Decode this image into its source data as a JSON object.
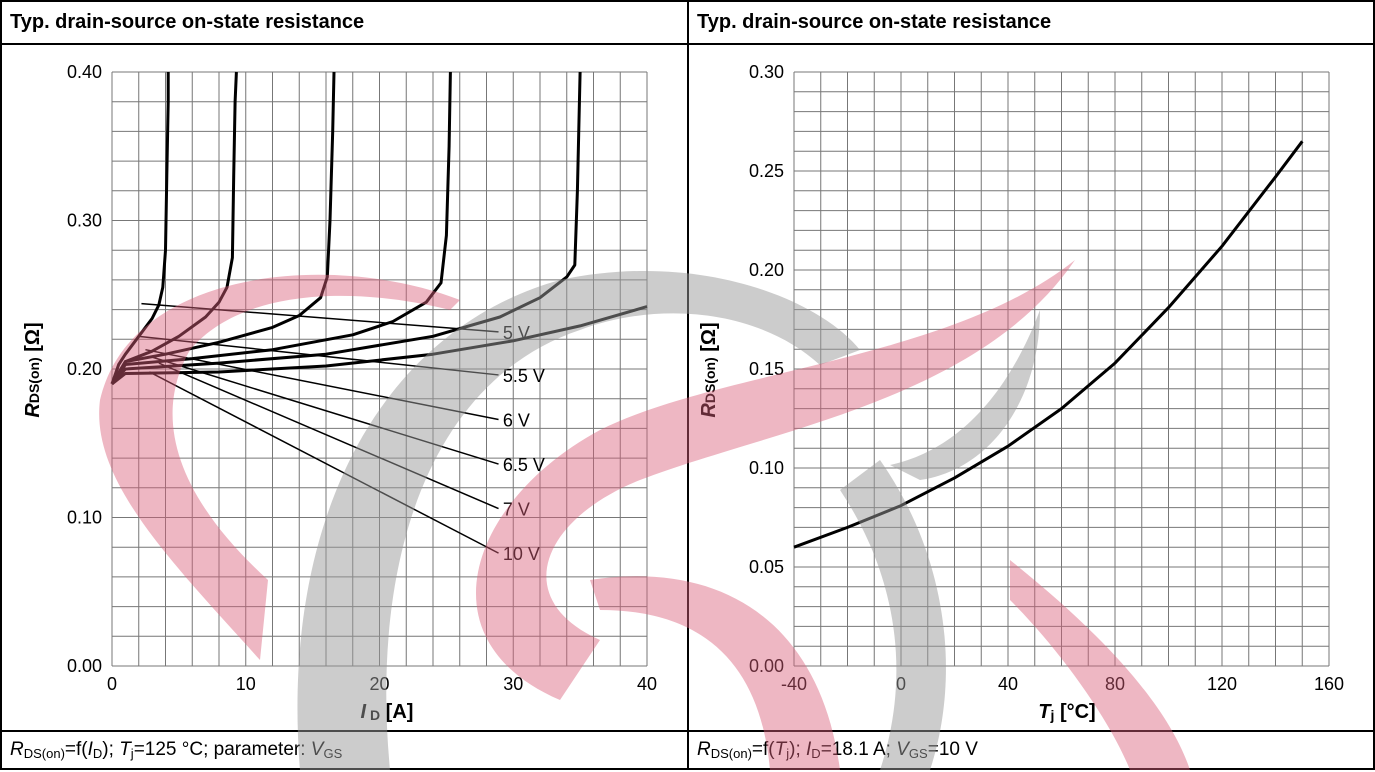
{
  "colors": {
    "grid": "#777777",
    "curve": "#000000",
    "watermark_red": "#d9607a",
    "watermark_gray": "#9a9a9a"
  },
  "left": {
    "header": "Typ. drain-source on-state resistance",
    "footer": {
      "f1": "R",
      "f1sub": "DS(on)",
      "f2": "=f(",
      "f3": "I",
      "f3sub": "D",
      "f4": "); ",
      "f5": "T",
      "f5sub": "j",
      "f6": "=125 °C; parameter: ",
      "f7": "V",
      "f7sub": "GS"
    }
  },
  "right": {
    "header": "Typ. drain-source on-state resistance",
    "footer": {
      "f1": "R",
      "f1sub": "DS(on)",
      "f2": "=f(",
      "f3": "T",
      "f3sub": "j",
      "f4": "); ",
      "f5": "I",
      "f5sub": "D",
      "f6": "=18.1 A; ",
      "f7": "V",
      "f7sub": "GS",
      "f8": "=10 V"
    }
  },
  "chart_data": [
    {
      "type": "line",
      "title": "Typ. drain-source on-state resistance",
      "xlabel": "I D [A]",
      "ylabel": "RDS(on) [Ω]",
      "xlim": [
        0,
        40
      ],
      "ylim": [
        0,
        0.4
      ],
      "xticks": [
        "0",
        "10",
        "20",
        "30",
        "40"
      ],
      "yticks": [
        "0.00",
        "0.10",
        "0.20",
        "0.30",
        "0.40"
      ],
      "x_minor_step": 2,
      "y_minor_step": 0.02,
      "grid": true,
      "series": [
        {
          "name": "5 V",
          "x": [
            0,
            0.5,
            1,
            2,
            3,
            3.5,
            3.8,
            4,
            4.1,
            4.2,
            4.2
          ],
          "y": [
            0.19,
            0.203,
            0.21,
            0.222,
            0.234,
            0.243,
            0.255,
            0.28,
            0.33,
            0.38,
            0.4
          ]
        },
        {
          "name": "5.5 V",
          "x": [
            0,
            1,
            3,
            5,
            7,
            8,
            8.6,
            9,
            9.1,
            9.2,
            9.3
          ],
          "y": [
            0.19,
            0.205,
            0.212,
            0.222,
            0.235,
            0.245,
            0.255,
            0.275,
            0.33,
            0.38,
            0.4
          ]
        },
        {
          "name": "6 V",
          "x": [
            0,
            1,
            4,
            8,
            12,
            14,
            15.6,
            16.1,
            16.3,
            16.5,
            16.6
          ],
          "y": [
            0.19,
            0.205,
            0.21,
            0.218,
            0.228,
            0.236,
            0.248,
            0.262,
            0.3,
            0.36,
            0.4
          ]
        },
        {
          "name": "6.5 V",
          "x": [
            0,
            1,
            6,
            12,
            18,
            21,
            23.5,
            24.6,
            25,
            25.2,
            25.3
          ],
          "y": [
            0.19,
            0.203,
            0.207,
            0.213,
            0.223,
            0.232,
            0.245,
            0.258,
            0.29,
            0.35,
            0.4
          ]
        },
        {
          "name": "7 V",
          "x": [
            0,
            1,
            8,
            16,
            24,
            29,
            32,
            34,
            34.6,
            34.8,
            35
          ],
          "y": [
            0.19,
            0.2,
            0.204,
            0.21,
            0.222,
            0.235,
            0.248,
            0.262,
            0.27,
            0.32,
            0.4
          ]
        },
        {
          "name": "10 V",
          "x": [
            0,
            1,
            8,
            16,
            24,
            30,
            35,
            40
          ],
          "y": [
            0.19,
            0.197,
            0.198,
            0.202,
            0.21,
            0.219,
            0.229,
            0.242
          ]
        }
      ],
      "legend_labels": [
        {
          "text": "5 V",
          "x": 29,
          "y": 0.225
        },
        {
          "text": "5.5 V",
          "x": 29,
          "y": 0.196
        },
        {
          "text": "6 V",
          "x": 29,
          "y": 0.166
        },
        {
          "text": "6.5 V",
          "x": 29,
          "y": 0.136
        },
        {
          "text": "7 V",
          "x": 29,
          "y": 0.106
        },
        {
          "text": "10 V",
          "x": 29,
          "y": 0.076
        }
      ],
      "leaders": [
        {
          "from": [
            2.2,
            0.244
          ],
          "to": [
            28.9,
            0.225
          ]
        },
        {
          "from": [
            2.0,
            0.222
          ],
          "to": [
            28.9,
            0.196
          ]
        },
        {
          "from": [
            2.5,
            0.213
          ],
          "to": [
            28.9,
            0.166
          ]
        },
        {
          "from": [
            3.0,
            0.208
          ],
          "to": [
            28.9,
            0.136
          ]
        },
        {
          "from": [
            3.5,
            0.204
          ],
          "to": [
            28.9,
            0.106
          ]
        },
        {
          "from": [
            2.8,
            0.198
          ],
          "to": [
            28.9,
            0.076
          ]
        }
      ]
    },
    {
      "type": "line",
      "title": "Typ. drain-source on-state resistance",
      "xlabel": "Tj [°C]",
      "ylabel": "RDS(on) [Ω]",
      "xlim": [
        -40,
        160
      ],
      "ylim": [
        0,
        0.3
      ],
      "xticks": [
        "-40",
        "0",
        "40",
        "80",
        "120",
        "160"
      ],
      "yticks": [
        "0.00",
        "0.05",
        "0.10",
        "0.15",
        "0.20",
        "0.25",
        "0.30"
      ],
      "x_minor_step": 10,
      "y_minor_step": 0.01,
      "grid": true,
      "series": [
        {
          "name": "",
          "x": [
            -40,
            -20,
            0,
            20,
            40,
            60,
            80,
            100,
            120,
            140,
            150
          ],
          "y": [
            0.06,
            0.07,
            0.081,
            0.095,
            0.111,
            0.13,
            0.153,
            0.181,
            0.212,
            0.247,
            0.265
          ]
        }
      ]
    }
  ]
}
